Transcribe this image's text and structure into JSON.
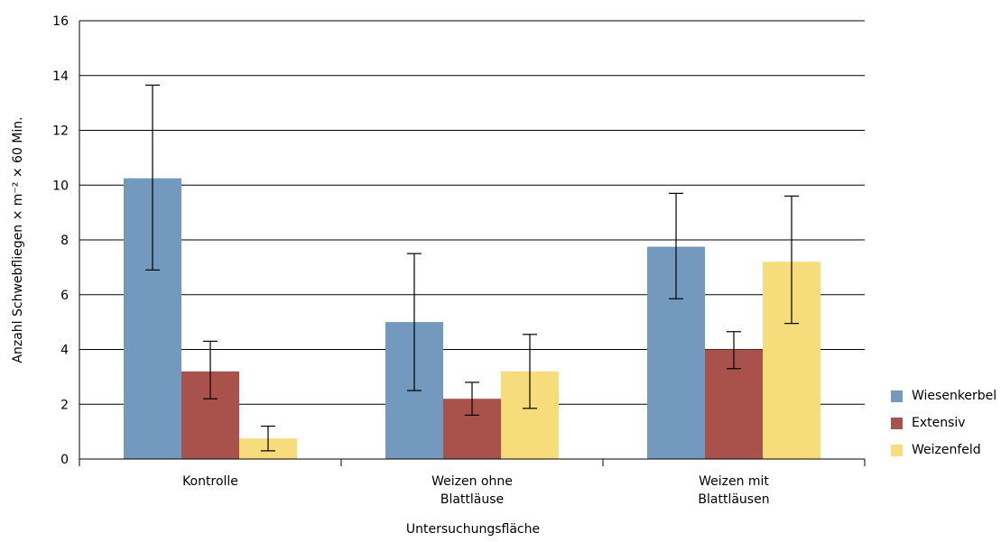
{
  "chart_data": {
    "type": "bar",
    "categories": [
      [
        "Kontrolle"
      ],
      [
        "Weizen ohne",
        "Blattläuse"
      ],
      [
        "Weizen mit",
        "Blattläusen"
      ]
    ],
    "series": [
      {
        "name": "Wiesenkerbel",
        "color": "#7399be",
        "values": [
          10.25,
          5.0,
          7.75
        ],
        "err_low": [
          6.9,
          2.5,
          5.85
        ],
        "err_high": [
          13.65,
          7.5,
          9.7
        ]
      },
      {
        "name": "Extensiv",
        "color": "#a9514b",
        "values": [
          3.2,
          2.2,
          4.0
        ],
        "err_low": [
          2.2,
          1.6,
          3.3
        ],
        "err_high": [
          4.3,
          2.8,
          4.65
        ]
      },
      {
        "name": "Weizenfeld",
        "color": "#f7dc7b",
        "values": [
          0.75,
          3.2,
          7.2
        ],
        "err_low": [
          0.3,
          1.85,
          4.95
        ],
        "err_high": [
          1.2,
          4.55,
          9.6
        ]
      }
    ],
    "xlabel": "Untersuchungsfläche",
    "ylabel": "Anzahl Schwebfliegen × m⁻² × 60 Min.",
    "ylim": [
      0,
      16
    ],
    "yticks": [
      0,
      2,
      4,
      6,
      8,
      10,
      12,
      14,
      16
    ],
    "grid": true,
    "legend_position": "right-bottom"
  }
}
